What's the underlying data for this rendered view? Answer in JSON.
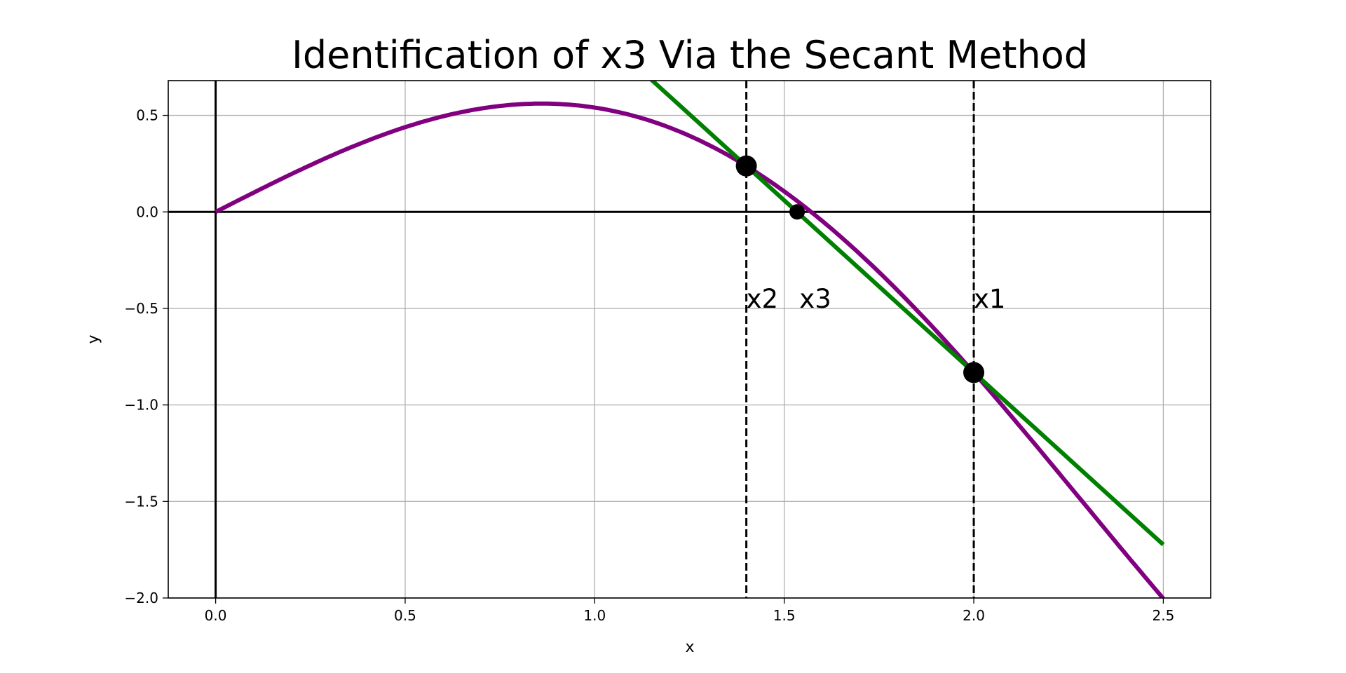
{
  "chart_data": {
    "type": "line",
    "title": "Identification of x3 Via the Secant Method",
    "xlabel": "x",
    "ylabel": "y",
    "xlim": [
      -0.125,
      2.625
    ],
    "ylim": [
      -2.0,
      0.68
    ],
    "grid": true,
    "xticks": [
      0.0,
      0.5,
      1.0,
      1.5,
      2.0,
      2.5
    ],
    "xtick_labels": [
      "0.0",
      "0.5",
      "1.0",
      "1.5",
      "2.0",
      "2.5"
    ],
    "yticks": [
      0.5,
      0.0,
      -0.5,
      -1.0,
      -1.5,
      -2.0
    ],
    "ytick_labels": [
      "0.5",
      "0.0",
      "−0.5",
      "−1.0",
      "−1.5",
      "−2.0"
    ],
    "series": [
      {
        "kind": "function",
        "expression": "x*cos(x)",
        "x_range": [
          0,
          2.5
        ],
        "color": "#800080"
      },
      {
        "kind": "secant-line",
        "through": [
          [
            1.4,
            0.238
          ],
          [
            2.0,
            -0.832
          ]
        ],
        "x_range": [
          0,
          2.5
        ],
        "color": "#008000"
      }
    ],
    "points": [
      {
        "x": 1.4,
        "y": 0.238,
        "size": "large"
      },
      {
        "x": 2.0,
        "y": -0.832,
        "size": "large"
      },
      {
        "x": 1.534,
        "y": 0.0,
        "size": "small"
      }
    ],
    "vertical_dashed_lines": [
      1.4,
      2.0
    ],
    "axis_lines": {
      "x": 0,
      "y": 0
    },
    "annotations": [
      {
        "text": "x2",
        "x": 1.4,
        "y": -0.45
      },
      {
        "text": "x3",
        "x": 1.54,
        "y": -0.45
      },
      {
        "text": "x1",
        "x": 2.0,
        "y": -0.45
      }
    ]
  }
}
